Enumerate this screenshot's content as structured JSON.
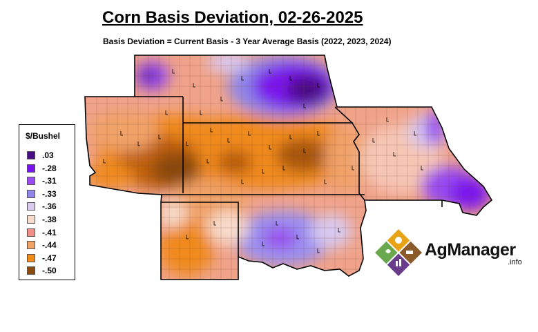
{
  "title": "Corn Basis Deviation, 02-26-2025",
  "subtitle": "Basis Deviation = Current Basis - 3 Year Average Basis (2022, 2023, 2024)",
  "legend": {
    "title": "$/Bushel",
    "items": [
      {
        "label": ".03",
        "color": "#4b0d84"
      },
      {
        "label": "-.28",
        "color": "#7a13ee"
      },
      {
        "label": "-.31",
        "color": "#9a4cf0"
      },
      {
        "label": "-.33",
        "color": "#8f86e8"
      },
      {
        "label": "-.36",
        "color": "#d8c9ef"
      },
      {
        "label": "-.38",
        "color": "#f7dccb"
      },
      {
        "label": "-.41",
        "color": "#f08f86"
      },
      {
        "label": "-.44",
        "color": "#f0a267"
      },
      {
        "label": "-.47",
        "color": "#f28a16"
      },
      {
        "label": "-.50",
        "color": "#8a4a10"
      }
    ]
  },
  "logo": {
    "text": "AgManager",
    "suffix": ".info"
  }
}
